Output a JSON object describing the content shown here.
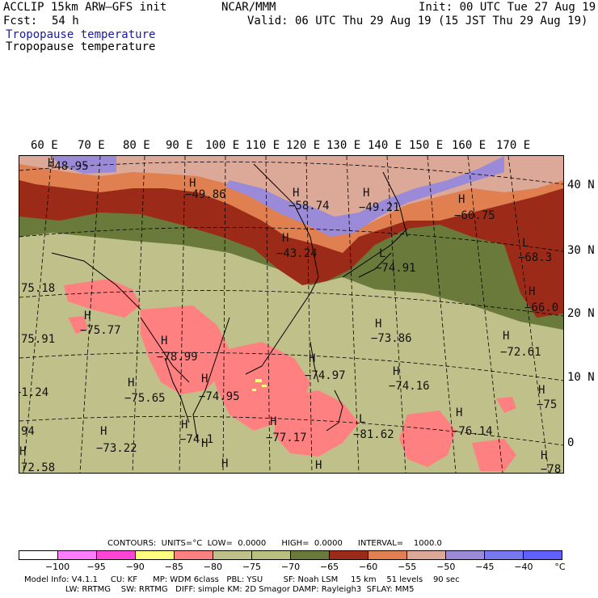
{
  "header": {
    "model": "ACCLIP 15km ARW–GFS init",
    "org": "NCAR/MMM",
    "init": "Init: 00 UTC Tue 27 Aug 19",
    "fcst_label": "Fcst:",
    "fcst_value": "54 h",
    "valid": "Valid: 06 UTC Thu 29 Aug 19 (15 JST Thu 29 Aug 19)",
    "field_title_1": "Tropopause temperature",
    "field_title_2": "Tropopause temperature"
  },
  "lon_labels": [
    "60 E",
    "70 E",
    "80 E",
    "90 E",
    "100 E",
    "110 E",
    "120 E",
    "130 E",
    "140 E",
    "150 E",
    "160 E",
    "170 E"
  ],
  "lat_labels": [
    "40 N",
    "30 N",
    "20 N",
    "10 N",
    "0"
  ],
  "map_labels": [
    {
      "id": "h1",
      "text": "H"
    },
    {
      "id": "v1",
      "text": "−48.95"
    },
    {
      "id": "h2",
      "text": "H"
    },
    {
      "id": "v2",
      "text": "−49.86"
    },
    {
      "id": "h3",
      "text": "H"
    },
    {
      "id": "v3",
      "text": "−58.74"
    },
    {
      "id": "h4",
      "text": "H"
    },
    {
      "id": "v4",
      "text": "−49.21"
    },
    {
      "id": "h5",
      "text": "H"
    },
    {
      "id": "v5",
      "text": "−60.75"
    },
    {
      "id": "h6",
      "text": "H"
    },
    {
      "id": "v6",
      "text": "−43.24"
    },
    {
      "id": "l1",
      "text": "L"
    },
    {
      "id": "v7",
      "text": "−74.91"
    },
    {
      "id": "l2",
      "text": "L"
    },
    {
      "id": "v8",
      "text": "−68.3"
    },
    {
      "id": "v9",
      "text": "75.18"
    },
    {
      "id": "h7",
      "text": "H"
    },
    {
      "id": "v10",
      "text": "−66.0"
    },
    {
      "id": "h8",
      "text": "H"
    },
    {
      "id": "v11",
      "text": "−75.77"
    },
    {
      "id": "h9",
      "text": "H"
    },
    {
      "id": "v12",
      "text": "−73.86"
    },
    {
      "id": "v13",
      "text": "75.91"
    },
    {
      "id": "h10",
      "text": "H"
    },
    {
      "id": "v14",
      "text": "−78.99"
    },
    {
      "id": "h11",
      "text": "H"
    },
    {
      "id": "v15",
      "text": "−72.61"
    },
    {
      "id": "h12",
      "text": "H"
    },
    {
      "id": "v16",
      "text": "−74.97"
    },
    {
      "id": "h13",
      "text": "H"
    },
    {
      "id": "v17",
      "text": "−74.16"
    },
    {
      "id": "v18",
      "text": "−1.24"
    },
    {
      "id": "h14",
      "text": "H"
    },
    {
      "id": "v19",
      "text": "−75.65"
    },
    {
      "id": "h15",
      "text": "H"
    },
    {
      "id": "v20",
      "text": "−74.95"
    },
    {
      "id": "h16",
      "text": "H"
    },
    {
      "id": "v21",
      "text": "−75"
    },
    {
      "id": "v22",
      "text": "94"
    },
    {
      "id": "h17",
      "text": "H"
    },
    {
      "id": "v23",
      "text": "−77.17"
    },
    {
      "id": "l3",
      "text": "L"
    },
    {
      "id": "v24",
      "text": "−81.62"
    },
    {
      "id": "h18",
      "text": "H"
    },
    {
      "id": "v25",
      "text": "−76.14"
    },
    {
      "id": "h19",
      "text": "H"
    },
    {
      "id": "v26",
      "text": "−74.1"
    },
    {
      "id": "h20",
      "text": "H"
    },
    {
      "id": "v27",
      "text": "−73.22"
    },
    {
      "id": "h21",
      "text": "H"
    },
    {
      "id": "v28",
      "text": "72.58"
    },
    {
      "id": "h22",
      "text": "H"
    },
    {
      "id": "h23",
      "text": "H"
    },
    {
      "id": "h24",
      "text": "H"
    },
    {
      "id": "h25",
      "text": "H"
    },
    {
      "id": "v29",
      "text": "−78"
    }
  ],
  "contours_line": "CONTOURS:  UNITS=°C  LOW=  0.0000      HIGH=  0.0000      INTERVAL=    1000.0",
  "colorbar": {
    "colors": [
      "#ffffff",
      "#ff7cff",
      "#ff44d6",
      "#ffff80",
      "#ff8080",
      "#c0c08a",
      "#b9c07f",
      "#6a7a3a",
      "#9c2a18",
      "#e08050",
      "#dca898",
      "#9a8ad8",
      "#7878f0",
      "#6060ff"
    ],
    "ticks": [
      "−100",
      "−95",
      "−90",
      "−85",
      "−80",
      "−75",
      "−70",
      "−65",
      "−60",
      "−55",
      "−50",
      "−45",
      "−40"
    ],
    "unit": "°C"
  },
  "footer": {
    "line1": "Model Info: V4.1.1     CU: KF      MP: WDM 6class   PBL: YSU        SF: Noah LSM     15 km    51 levels    90 sec",
    "line2": "                LW: RRTMG    SW: RRTMG   DIFF: simple KM: 2D Smagor DAMP: Rayleigh3  SFLAY: MM5"
  },
  "colors": {
    "low_zone": "#c0c08a",
    "pink_zone": "#ff8080",
    "olive_band": "#6a7a3a",
    "brown_band": "#9c2a18",
    "orange_band": "#e08050",
    "rose_band": "#dca898",
    "purple_band": "#9a8ad8"
  }
}
